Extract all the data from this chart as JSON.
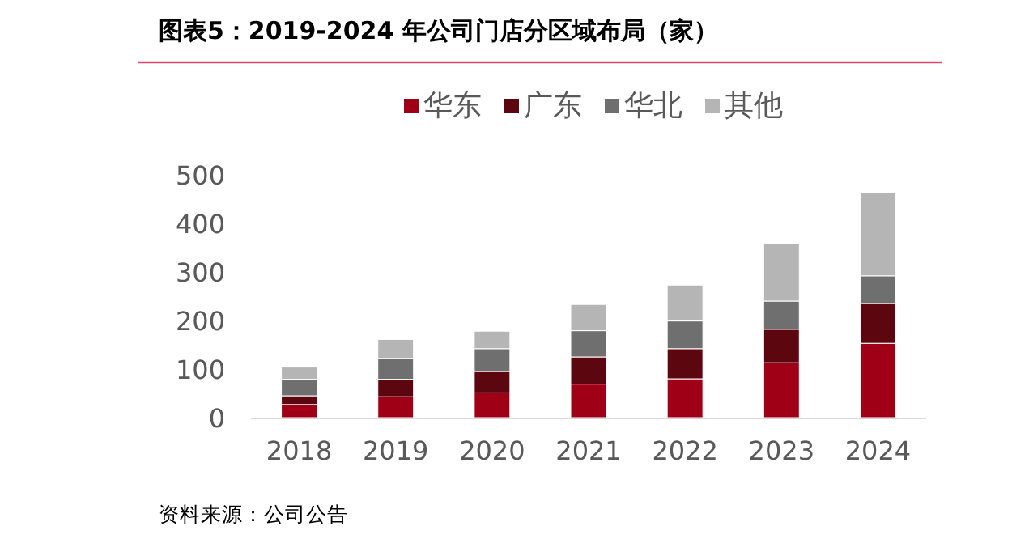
{
  "chart_data": {
    "type": "bar",
    "stacked": true,
    "title": "图表5：2019-2024 年公司门店分区域布局（家）",
    "annotations": [
      "资料来源：公司公告"
    ],
    "categories": [
      "2018",
      "2019",
      "2020",
      "2021",
      "2022",
      "2023",
      "2024"
    ],
    "series": [
      {
        "name": "华东",
        "color": "#a00016",
        "values": [
          27,
          43,
          51,
          69,
          80,
          113,
          153
        ]
      },
      {
        "name": "广东",
        "color": "#5c0610",
        "values": [
          18,
          36,
          44,
          56,
          62,
          69,
          82
        ]
      },
      {
        "name": "华北",
        "color": "#6f6f6f",
        "values": [
          34,
          43,
          47,
          54,
          57,
          58,
          57
        ]
      },
      {
        "name": "其他",
        "color": "#b5b5b5",
        "values": [
          25,
          39,
          36,
          54,
          74,
          118,
          171
        ]
      }
    ],
    "ylim": [
      0,
      500
    ],
    "yticks": [
      0,
      100,
      200,
      300,
      400,
      500
    ],
    "grid": false,
    "legend": "top"
  }
}
